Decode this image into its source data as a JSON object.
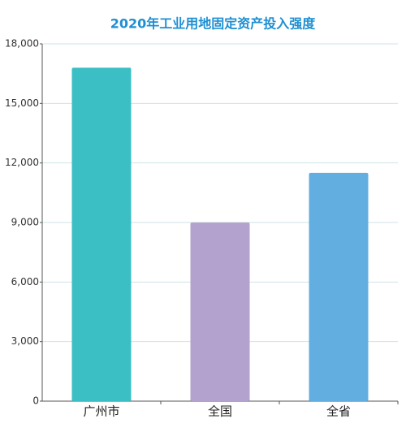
{
  "chart_data": {
    "type": "bar",
    "title": "2020年工业用地固定资产投入强度",
    "categories": [
      "广州市",
      "全国",
      "全省"
    ],
    "values": [
      16800,
      9000,
      11500
    ],
    "colors": [
      "#3bbfc4",
      "#b3a2cd",
      "#62aee1"
    ],
    "ylim": [
      0,
      18000
    ],
    "yticks": [
      0,
      {
        "value": 3000,
        "label": "3,000"
      },
      {
        "value": 6000,
        "label": "6,000"
      },
      {
        "value": 9000,
        "label": "9,000"
      },
      {
        "value": 12000,
        "label": "12,000"
      },
      {
        "value": 15000,
        "label": "15,000"
      },
      {
        "value": 18000,
        "label": "18,000"
      }
    ],
    "grid": true
  }
}
